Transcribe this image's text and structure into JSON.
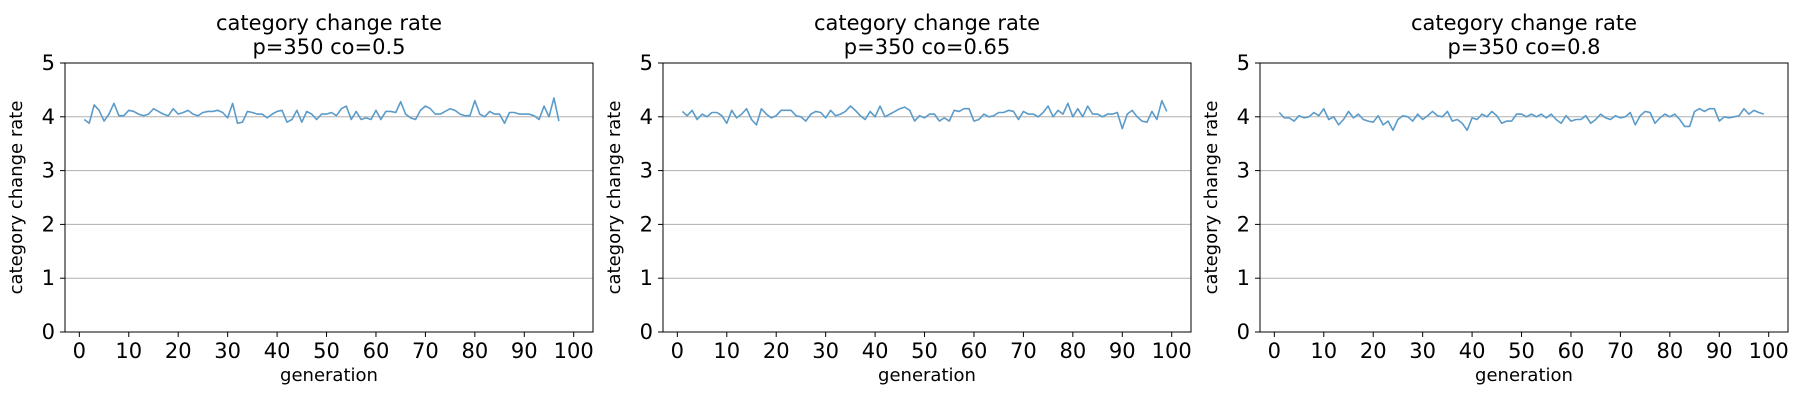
{
  "chart_data": [
    {
      "type": "line",
      "title": "category change rate",
      "subtitle": "p=350 co=0.5",
      "xlabel": "generation",
      "ylabel": "category change rate",
      "xlim": [
        -2.9,
        103.9
      ],
      "ylim": [
        0,
        5
      ],
      "xticks": [
        0,
        10,
        20,
        30,
        40,
        50,
        60,
        70,
        80,
        90,
        100
      ],
      "yticks": [
        0,
        1,
        2,
        3,
        4,
        5
      ],
      "grid": "y",
      "color": "#5b9bc9",
      "x_start": 1,
      "y": [
        3.95,
        3.88,
        4.22,
        4.12,
        3.92,
        4.05,
        4.25,
        4.02,
        4.02,
        4.12,
        4.1,
        4.05,
        4.02,
        4.05,
        4.15,
        4.1,
        4.05,
        4.02,
        4.15,
        4.05,
        4.08,
        4.12,
        4.05,
        4.02,
        4.08,
        4.1,
        4.1,
        4.12,
        4.08,
        3.98,
        4.25,
        3.88,
        3.9,
        4.1,
        4.08,
        4.05,
        4.05,
        3.98,
        4.05,
        4.1,
        4.12,
        3.9,
        3.95,
        4.12,
        3.9,
        4.1,
        4.05,
        3.95,
        4.05,
        4.05,
        4.08,
        4.02,
        4.15,
        4.2,
        3.95,
        4.1,
        3.95,
        3.98,
        3.95,
        4.12,
        3.95,
        4.1,
        4.1,
        4.08,
        4.28,
        4.05,
        3.98,
        3.95,
        4.12,
        4.2,
        4.15,
        4.05,
        4.05,
        4.1,
        4.15,
        4.12,
        4.05,
        4.02,
        4.02,
        4.3,
        4.05,
        4.0,
        4.1,
        4.05,
        4.05,
        3.88,
        4.08,
        4.08,
        4.05,
        4.05,
        4.05,
        4.02,
        3.95,
        4.2,
        4.0,
        4.35,
        3.92
      ]
    },
    {
      "type": "line",
      "title": "category change rate",
      "subtitle": "p=350 co=0.65",
      "xlabel": "generation",
      "ylabel": "category change rate",
      "xlim": [
        -2.9,
        103.9
      ],
      "ylim": [
        0,
        5
      ],
      "xticks": [
        0,
        10,
        20,
        30,
        40,
        50,
        60,
        70,
        80,
        90,
        100
      ],
      "yticks": [
        0,
        1,
        2,
        3,
        4,
        5
      ],
      "grid": "y",
      "color": "#5b9bc9",
      "x_start": 1,
      "y": [
        4.1,
        4.02,
        4.12,
        3.95,
        4.05,
        4.0,
        4.08,
        4.08,
        4.02,
        3.88,
        4.12,
        3.98,
        4.05,
        4.15,
        3.95,
        3.85,
        4.15,
        4.05,
        3.98,
        4.02,
        4.12,
        4.12,
        4.12,
        4.02,
        4.0,
        3.92,
        4.05,
        4.1,
        4.08,
        3.98,
        4.12,
        4.02,
        4.05,
        4.1,
        4.2,
        4.12,
        4.02,
        3.95,
        4.1,
        4.0,
        4.2,
        4.0,
        4.05,
        4.1,
        4.15,
        4.18,
        4.12,
        3.92,
        4.02,
        3.98,
        4.05,
        4.05,
        3.92,
        3.98,
        3.92,
        4.12,
        4.1,
        4.15,
        4.15,
        3.92,
        3.95,
        4.05,
        4.0,
        4.02,
        4.08,
        4.08,
        4.12,
        4.1,
        3.95,
        4.1,
        4.05,
        4.05,
        4.0,
        4.08,
        4.2,
        4.0,
        4.12,
        4.05,
        4.25,
        4.0,
        4.15,
        4.0,
        4.2,
        4.05,
        4.05,
        4.0,
        4.05,
        4.05,
        4.08,
        3.78,
        4.05,
        4.12,
        4.0,
        3.92,
        3.9,
        4.1,
        3.95,
        4.3,
        4.1
      ]
    },
    {
      "type": "line",
      "title": "category change rate",
      "subtitle": "p=350 co=0.8",
      "xlabel": "generation",
      "ylabel": "category change rate",
      "xlim": [
        -2.9,
        103.9
      ],
      "ylim": [
        0,
        5
      ],
      "xticks": [
        0,
        10,
        20,
        30,
        40,
        50,
        60,
        70,
        80,
        90,
        100
      ],
      "yticks": [
        0,
        1,
        2,
        3,
        4,
        5
      ],
      "grid": "y",
      "color": "#5b9bc9",
      "x_start": 1,
      "y": [
        4.08,
        3.98,
        3.98,
        3.92,
        4.02,
        3.98,
        4.0,
        4.08,
        4.02,
        4.15,
        3.95,
        4.0,
        3.85,
        3.95,
        4.1,
        3.98,
        4.05,
        3.95,
        3.92,
        3.9,
        4.02,
        3.85,
        3.92,
        3.75,
        3.95,
        4.02,
        4.0,
        3.92,
        4.05,
        3.95,
        4.02,
        4.1,
        4.02,
        4.0,
        4.1,
        3.92,
        3.95,
        3.88,
        3.75,
        3.98,
        3.95,
        4.05,
        4.0,
        4.1,
        4.02,
        3.88,
        3.92,
        3.92,
        4.05,
        4.05,
        4.0,
        4.05,
        4.0,
        4.05,
        3.98,
        4.05,
        3.95,
        3.88,
        4.02,
        3.92,
        3.95,
        3.95,
        4.02,
        3.88,
        3.95,
        4.05,
        3.98,
        3.95,
        4.02,
        3.98,
        4.0,
        4.08,
        3.85,
        4.02,
        4.1,
        4.08,
        3.88,
        3.98,
        4.05,
        4.0,
        4.05,
        3.95,
        3.82,
        3.82,
        4.1,
        4.15,
        4.1,
        4.15,
        4.15,
        3.92,
        4.0,
        3.98,
        4.0,
        4.02,
        4.15,
        4.05,
        4.12,
        4.08,
        4.05
      ]
    }
  ]
}
